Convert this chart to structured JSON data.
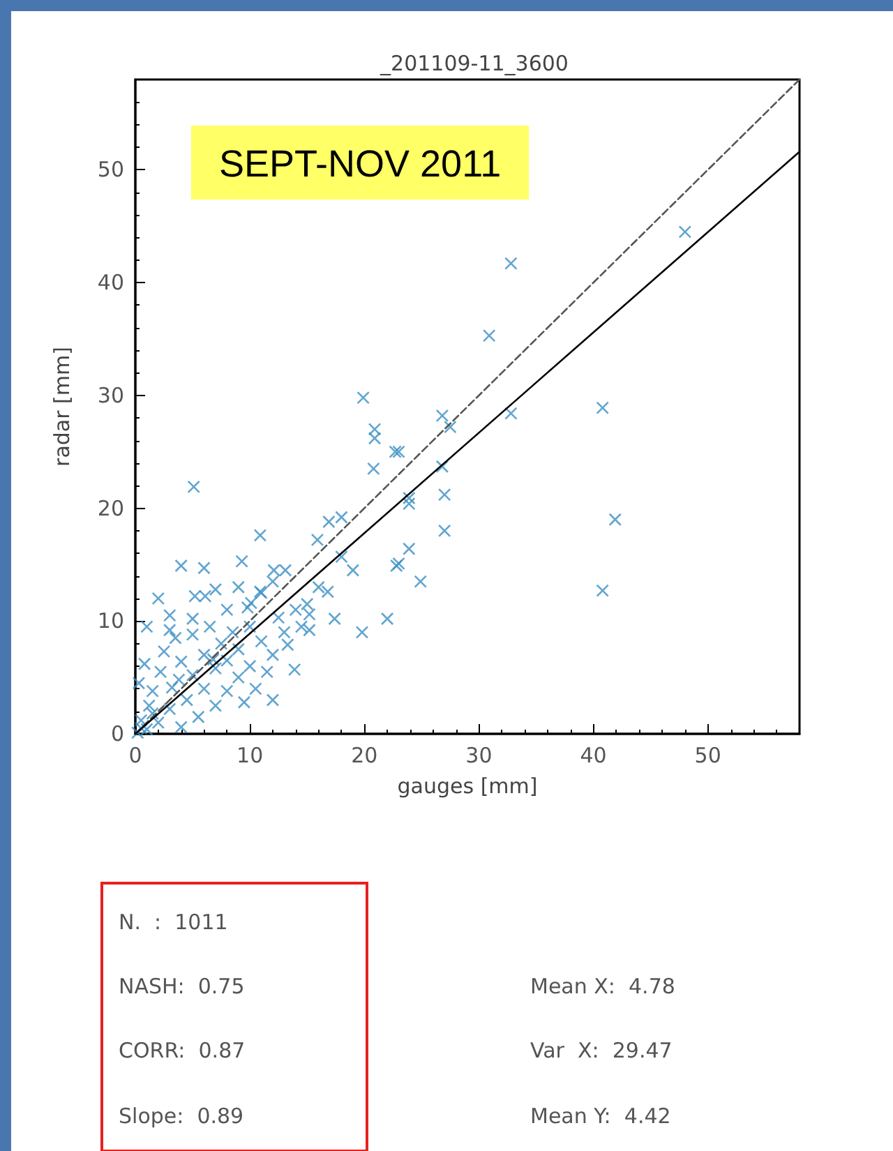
{
  "chart_data": {
    "type": "scatter",
    "title": "_201109-11_3600",
    "xlabel": "gauges [mm]",
    "ylabel": "radar [mm]",
    "xlim": [
      0,
      58
    ],
    "ylim": [
      0,
      58
    ],
    "xticks": [
      0,
      10,
      20,
      30,
      40,
      50
    ],
    "yticks": [
      0,
      10,
      20,
      30,
      40,
      50
    ],
    "grid": false,
    "annotations": [
      "SEPT-NOV 2011",
      "N.  :  1011",
      "NASH:  0.75",
      "CORR:  0.87",
      "Slope:  0.89",
      "Mean X:  4.78",
      "Var  X:  29.47",
      "Mean Y:  4.42"
    ],
    "series": [
      {
        "color": "#3b8fc4",
        "marker": "cross",
        "x": [
          0.2,
          0.5,
          1,
          1.2,
          0.3,
          0.8,
          1.5,
          2,
          2.2,
          2.5,
          3,
          3.2,
          3.5,
          4,
          4,
          4.5,
          5,
          5,
          5.5,
          6,
          6,
          6.5,
          7,
          7,
          7.5,
          8,
          8,
          8.5,
          9,
          9,
          9.5,
          10,
          10,
          10.5,
          11,
          11.5,
          12,
          12,
          12.5,
          13,
          14,
          14.5,
          15,
          3,
          2,
          1,
          7,
          8,
          9,
          11,
          12,
          0.5,
          1.5,
          3.8,
          6.8,
          9.8,
          16,
          32.8,
          48.0,
          30.9,
          19.9,
          20.9,
          20.9,
          23.0,
          26.8,
          27.5,
          32.8,
          40.8,
          20.8,
          26.8,
          41.9,
          40.8,
          27.0,
          27.0,
          23.9,
          24.9,
          23.9,
          22.8,
          22.7,
          5.1,
          19.8,
          22.0,
          23.9,
          16.9,
          18.0,
          15.9,
          19.0,
          17.4,
          16.8,
          18.0,
          23.0,
          10.9,
          4.0,
          6.0,
          5.2,
          6.1,
          9.3,
          12.1,
          13.1,
          15.2,
          15.2,
          13.9,
          13.3,
          5.0,
          3.0,
          10.9,
          10.1
        ],
        "values": [
          0.1,
          1.2,
          0.4,
          2.5,
          4.5,
          6.2,
          3.8,
          1,
          5.5,
          7.3,
          2.2,
          4.1,
          8.5,
          0.6,
          6.4,
          3,
          5.2,
          8.8,
          1.5,
          4,
          7,
          9.5,
          2.5,
          5.8,
          8,
          3.8,
          6.5,
          9,
          5,
          7.5,
          2.8,
          9.5,
          6,
          4,
          8.2,
          5.5,
          3,
          7,
          10.3,
          9,
          11,
          9.5,
          11.5,
          10.5,
          12,
          9.5,
          12.8,
          11,
          13,
          12.5,
          13.5,
          0.5,
          1.8,
          4.8,
          6.6,
          11.2,
          13,
          41.7,
          44.5,
          35.3,
          29.8,
          27.0,
          26.2,
          25.0,
          28.2,
          27.2,
          28.4,
          28.9,
          23.5,
          23.7,
          19.0,
          12.7,
          21.2,
          18.0,
          20.4,
          13.5,
          16.4,
          14.9,
          25.0,
          21.9,
          9.0,
          10.2,
          20.9,
          18.8,
          19.2,
          17.2,
          14.5,
          10.2,
          12.6,
          15.7,
          15.1,
          17.6,
          14.9,
          14.7,
          12.2,
          12.2,
          15.3,
          14.5,
          14.5,
          10.6,
          9.2,
          5.7,
          7.9,
          10.2,
          9.2,
          12.6,
          11.6
        ]
      },
      {
        "type": "line",
        "color": "#555555",
        "line_style": "dashed",
        "marker": "none",
        "x": [
          0,
          58
        ],
        "values": [
          0,
          58
        ]
      },
      {
        "type": "line",
        "color": "#000000",
        "line_style": "solid",
        "marker": "none",
        "x": [
          0,
          58
        ],
        "values": [
          0,
          51.6
        ]
      }
    ]
  }
}
